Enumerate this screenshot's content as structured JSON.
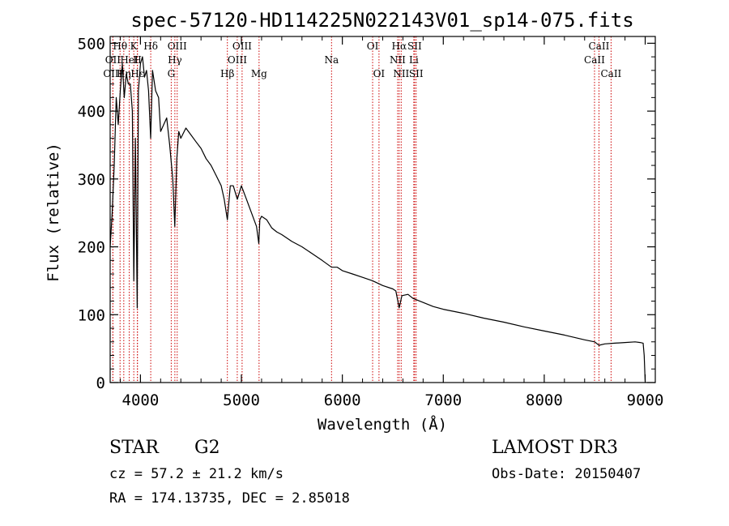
{
  "chart_data": {
    "type": "line",
    "title": "spec-57120-HD114225N022143V01_sp14-075.fits",
    "xlabel": "Wavelength (Å)",
    "ylabel": "Flux (relative)",
    "xlim": [
      3700,
      9100
    ],
    "ylim": [
      0,
      510
    ],
    "xticks": [
      4000,
      5000,
      6000,
      7000,
      8000,
      9000
    ],
    "yticks": [
      0,
      100,
      200,
      300,
      400,
      500
    ],
    "series": [
      {
        "name": "flux",
        "x": [
          3700,
          3720,
          3740,
          3760,
          3780,
          3800,
          3820,
          3840,
          3860,
          3880,
          3900,
          3920,
          3934,
          3950,
          3968,
          3980,
          4000,
          4020,
          4040,
          4060,
          4080,
          4101,
          4120,
          4150,
          4180,
          4200,
          4230,
          4260,
          4290,
          4320,
          4340,
          4360,
          4380,
          4400,
          4450,
          4500,
          4550,
          4600,
          4650,
          4700,
          4750,
          4800,
          4830,
          4861,
          4890,
          4920,
          4960,
          5000,
          5050,
          5100,
          5150,
          5172,
          5183,
          5200,
          5250,
          5300,
          5350,
          5400,
          5500,
          5600,
          5700,
          5800,
          5893,
          5950,
          6000,
          6100,
          6200,
          6300,
          6400,
          6500,
          6530,
          6563,
          6590,
          6650,
          6700,
          6800,
          6900,
          7000,
          7200,
          7400,
          7600,
          7800,
          8000,
          8200,
          8400,
          8500,
          8542,
          8600,
          8700,
          8800,
          8900,
          8950,
          8980,
          8990,
          9000
        ],
        "y": [
          200,
          250,
          320,
          420,
          380,
          430,
          470,
          420,
          455,
          440,
          440,
          400,
          150,
          360,
          110,
          430,
          470,
          480,
          450,
          460,
          430,
          360,
          460,
          430,
          420,
          370,
          380,
          390,
          350,
          300,
          230,
          330,
          370,
          360,
          375,
          365,
          355,
          345,
          330,
          320,
          305,
          290,
          270,
          240,
          290,
          290,
          270,
          290,
          270,
          250,
          230,
          205,
          240,
          245,
          240,
          228,
          222,
          218,
          208,
          200,
          190,
          180,
          170,
          170,
          165,
          160,
          155,
          150,
          143,
          138,
          135,
          110,
          128,
          130,
          124,
          118,
          112,
          108,
          102,
          95,
          89,
          82,
          76,
          70,
          63,
          60,
          55,
          57,
          58,
          59,
          60,
          59,
          58,
          40,
          2
        ]
      }
    ],
    "emission_lines": [
      {
        "label": "Hθ",
        "wl": 3798,
        "row": 1
      },
      {
        "label": "K",
        "wl": 3934,
        "row": 1
      },
      {
        "label": "Hδ",
        "wl": 4102,
        "row": 1
      },
      {
        "label": "OIII",
        "wl": 4364,
        "row": 1
      },
      {
        "label": "OIII",
        "wl": 5007,
        "row": 1
      },
      {
        "label": "OI",
        "wl": 6300,
        "row": 1
      },
      {
        "label": "Hα",
        "wl": 6563,
        "row": 1
      },
      {
        "label": "SII",
        "wl": 6716,
        "row": 1
      },
      {
        "label": "CaII",
        "wl": 8542,
        "row": 1
      },
      {
        "label": "OII",
        "wl": 3727,
        "row": 2
      },
      {
        "label": "HeI",
        "wl": 3889,
        "row": 2
      },
      {
        "label": "H",
        "wl": 3970,
        "row": 2
      },
      {
        "label": "Hγ",
        "wl": 4341,
        "row": 2
      },
      {
        "label": "OIII",
        "wl": 4959,
        "row": 2
      },
      {
        "label": "Na",
        "wl": 5893,
        "row": 2
      },
      {
        "label": "NII",
        "wl": 6548,
        "row": 2
      },
      {
        "label": "Li",
        "wl": 6708,
        "row": 2
      },
      {
        "label": "CaII",
        "wl": 8498,
        "row": 2
      },
      {
        "label": "OIII",
        "wl": 3727,
        "row": 3
      },
      {
        "label": "Hη",
        "wl": 3835,
        "row": 3
      },
      {
        "label": "Hε",
        "wl": 3970,
        "row": 3
      },
      {
        "label": "G",
        "wl": 4305,
        "row": 3
      },
      {
        "label": "Hβ",
        "wl": 4861,
        "row": 3
      },
      {
        "label": "Mg",
        "wl": 5175,
        "row": 3
      },
      {
        "label": "OI",
        "wl": 6363,
        "row": 3
      },
      {
        "label": "NII",
        "wl": 6583,
        "row": 3
      },
      {
        "label": "SII",
        "wl": 6731,
        "row": 3
      },
      {
        "label": "CaII",
        "wl": 8662,
        "row": 3
      }
    ]
  },
  "info": {
    "object_class": "STAR",
    "subclass": "G2",
    "survey": "LAMOST DR3",
    "redshift": "cz =  57.2 ± 21.2 km/s",
    "obs_date": "Obs-Date: 20150407",
    "coords": "RA = 174.13735, DEC =    2.85018"
  }
}
